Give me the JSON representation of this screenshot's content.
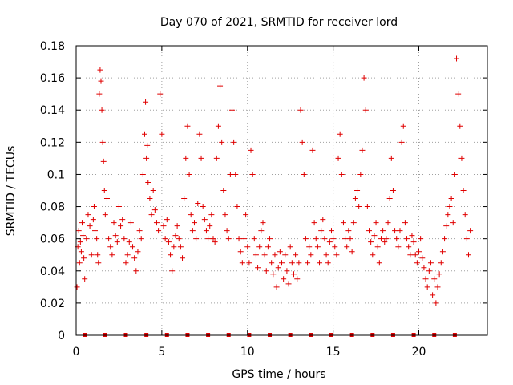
{
  "chart_data": {
    "type": "scatter",
    "title": "Day 070 of 2021, SRMTID for receiver lord",
    "xlabel": "GPS time / hours",
    "ylabel": "SRMTID / TECUs",
    "xlim": [
      0,
      24
    ],
    "ylim": [
      0,
      0.18
    ],
    "xticks": [
      0,
      5,
      10,
      15,
      20
    ],
    "xtick_labels": [
      "0",
      "5",
      "10",
      "15",
      "20"
    ],
    "yticks": [
      0,
      0.02,
      0.04,
      0.06,
      0.08,
      0.1,
      0.12,
      0.14,
      0.16,
      0.18
    ],
    "ytick_labels": [
      "0",
      "0.02",
      "0.04",
      "0.06",
      "0.08",
      "0.1",
      "0.12",
      "0.14",
      "0.16",
      "0.18"
    ],
    "grid": true,
    "marker": "+",
    "color": "#e00000",
    "series": [
      {
        "name": "SRMTID",
        "points": [
          [
            0.05,
            0.03
          ],
          [
            0.1,
            0.055
          ],
          [
            0.15,
            0.065
          ],
          [
            0.2,
            0.045
          ],
          [
            0.25,
            0.058
          ],
          [
            0.3,
            0.052
          ],
          [
            0.35,
            0.07
          ],
          [
            0.4,
            0.062
          ],
          [
            0.45,
            0.048
          ],
          [
            0.5,
            0.035
          ],
          [
            0.6,
            0.06
          ],
          [
            0.7,
            0.075
          ],
          [
            0.8,
            0.068
          ],
          [
            0.9,
            0.05
          ],
          [
            1.0,
            0.072
          ],
          [
            1.05,
            0.08
          ],
          [
            1.1,
            0.065
          ],
          [
            1.2,
            0.06
          ],
          [
            1.25,
            0.05
          ],
          [
            1.3,
            0.045
          ],
          [
            1.35,
            0.15
          ],
          [
            1.4,
            0.165
          ],
          [
            1.45,
            0.158
          ],
          [
            1.5,
            0.14
          ],
          [
            1.55,
            0.12
          ],
          [
            1.6,
            0.108
          ],
          [
            1.65,
            0.09
          ],
          [
            1.7,
            0.075
          ],
          [
            1.8,
            0.085
          ],
          [
            1.9,
            0.06
          ],
          [
            2.0,
            0.055
          ],
          [
            2.1,
            0.05
          ],
          [
            2.2,
            0.07
          ],
          [
            2.3,
            0.062
          ],
          [
            2.4,
            0.058
          ],
          [
            2.5,
            0.08
          ],
          [
            2.6,
            0.068
          ],
          [
            2.7,
            0.072
          ],
          [
            2.8,
            0.06
          ],
          [
            2.9,
            0.045
          ],
          [
            3.0,
            0.05
          ],
          [
            3.1,
            0.058
          ],
          [
            3.2,
            0.07
          ],
          [
            3.3,
            0.055
          ],
          [
            3.4,
            0.048
          ],
          [
            3.5,
            0.04
          ],
          [
            3.6,
            0.052
          ],
          [
            3.7,
            0.065
          ],
          [
            3.8,
            0.06
          ],
          [
            3.9,
            0.1
          ],
          [
            4.0,
            0.125
          ],
          [
            4.05,
            0.145
          ],
          [
            4.1,
            0.11
          ],
          [
            4.15,
            0.118
          ],
          [
            4.2,
            0.095
          ],
          [
            4.3,
            0.085
          ],
          [
            4.4,
            0.075
          ],
          [
            4.5,
            0.09
          ],
          [
            4.6,
            0.078
          ],
          [
            4.7,
            0.07
          ],
          [
            4.8,
            0.065
          ],
          [
            4.9,
            0.15
          ],
          [
            5.0,
            0.125
          ],
          [
            5.1,
            0.068
          ],
          [
            5.2,
            0.06
          ],
          [
            5.3,
            0.072
          ],
          [
            5.4,
            0.058
          ],
          [
            5.5,
            0.05
          ],
          [
            5.6,
            0.04
          ],
          [
            5.7,
            0.055
          ],
          [
            5.8,
            0.062
          ],
          [
            5.9,
            0.068
          ],
          [
            6.0,
            0.06
          ],
          [
            6.1,
            0.055
          ],
          [
            6.2,
            0.048
          ],
          [
            6.3,
            0.085
          ],
          [
            6.4,
            0.11
          ],
          [
            6.5,
            0.13
          ],
          [
            6.6,
            0.1
          ],
          [
            6.7,
            0.075
          ],
          [
            6.8,
            0.065
          ],
          [
            6.9,
            0.07
          ],
          [
            7.0,
            0.06
          ],
          [
            7.1,
            0.082
          ],
          [
            7.2,
            0.125
          ],
          [
            7.3,
            0.11
          ],
          [
            7.4,
            0.08
          ],
          [
            7.5,
            0.072
          ],
          [
            7.6,
            0.065
          ],
          [
            7.7,
            0.06
          ],
          [
            7.8,
            0.068
          ],
          [
            7.9,
            0.075
          ],
          [
            8.0,
            0.06
          ],
          [
            8.1,
            0.058
          ],
          [
            8.2,
            0.11
          ],
          [
            8.3,
            0.13
          ],
          [
            8.4,
            0.155
          ],
          [
            8.5,
            0.12
          ],
          [
            8.6,
            0.09
          ],
          [
            8.7,
            0.075
          ],
          [
            8.8,
            0.065
          ],
          [
            8.9,
            0.06
          ],
          [
            9.0,
            0.1
          ],
          [
            9.1,
            0.14
          ],
          [
            9.2,
            0.12
          ],
          [
            9.3,
            0.1
          ],
          [
            9.4,
            0.08
          ],
          [
            9.5,
            0.06
          ],
          [
            9.6,
            0.052
          ],
          [
            9.7,
            0.045
          ],
          [
            9.8,
            0.06
          ],
          [
            9.9,
            0.075
          ],
          [
            10.0,
            0.055
          ],
          [
            10.1,
            0.045
          ],
          [
            10.2,
            0.115
          ],
          [
            10.3,
            0.1
          ],
          [
            10.4,
            0.06
          ],
          [
            10.5,
            0.05
          ],
          [
            10.6,
            0.042
          ],
          [
            10.7,
            0.055
          ],
          [
            10.8,
            0.065
          ],
          [
            10.9,
            0.07
          ],
          [
            11.0,
            0.05
          ],
          [
            11.1,
            0.04
          ],
          [
            11.2,
            0.055
          ],
          [
            11.3,
            0.06
          ],
          [
            11.4,
            0.045
          ],
          [
            11.5,
            0.038
          ],
          [
            11.6,
            0.05
          ],
          [
            11.7,
            0.03
          ],
          [
            11.8,
            0.042
          ],
          [
            11.9,
            0.052
          ],
          [
            12.0,
            0.045
          ],
          [
            12.1,
            0.035
          ],
          [
            12.2,
            0.05
          ],
          [
            12.3,
            0.04
          ],
          [
            12.4,
            0.032
          ],
          [
            12.5,
            0.055
          ],
          [
            12.6,
            0.045
          ],
          [
            12.7,
            0.038
          ],
          [
            12.8,
            0.05
          ],
          [
            12.9,
            0.035
          ],
          [
            13.0,
            0.045
          ],
          [
            13.1,
            0.14
          ],
          [
            13.2,
            0.12
          ],
          [
            13.3,
            0.1
          ],
          [
            13.4,
            0.06
          ],
          [
            13.5,
            0.045
          ],
          [
            13.6,
            0.055
          ],
          [
            13.7,
            0.05
          ],
          [
            13.8,
            0.115
          ],
          [
            13.9,
            0.07
          ],
          [
            14.0,
            0.06
          ],
          [
            14.1,
            0.055
          ],
          [
            14.2,
            0.045
          ],
          [
            14.3,
            0.065
          ],
          [
            14.4,
            0.072
          ],
          [
            14.5,
            0.06
          ],
          [
            14.6,
            0.05
          ],
          [
            14.7,
            0.045
          ],
          [
            14.8,
            0.058
          ],
          [
            14.9,
            0.065
          ],
          [
            15.0,
            0.06
          ],
          [
            15.1,
            0.055
          ],
          [
            15.2,
            0.05
          ],
          [
            15.3,
            0.11
          ],
          [
            15.4,
            0.125
          ],
          [
            15.5,
            0.1
          ],
          [
            15.6,
            0.07
          ],
          [
            15.7,
            0.06
          ],
          [
            15.8,
            0.055
          ],
          [
            15.9,
            0.065
          ],
          [
            16.0,
            0.06
          ],
          [
            16.1,
            0.052
          ],
          [
            16.2,
            0.07
          ],
          [
            16.3,
            0.085
          ],
          [
            16.4,
            0.09
          ],
          [
            16.5,
            0.08
          ],
          [
            16.6,
            0.1
          ],
          [
            16.7,
            0.115
          ],
          [
            16.8,
            0.16
          ],
          [
            16.9,
            0.14
          ],
          [
            17.0,
            0.08
          ],
          [
            17.1,
            0.065
          ],
          [
            17.2,
            0.058
          ],
          [
            17.3,
            0.05
          ],
          [
            17.4,
            0.062
          ],
          [
            17.5,
            0.07
          ],
          [
            17.6,
            0.055
          ],
          [
            17.7,
            0.045
          ],
          [
            17.8,
            0.06
          ],
          [
            17.9,
            0.065
          ],
          [
            18.0,
            0.058
          ],
          [
            18.1,
            0.06
          ],
          [
            18.2,
            0.07
          ],
          [
            18.3,
            0.085
          ],
          [
            18.4,
            0.11
          ],
          [
            18.5,
            0.09
          ],
          [
            18.6,
            0.065
          ],
          [
            18.7,
            0.06
          ],
          [
            18.8,
            0.055
          ],
          [
            18.9,
            0.065
          ],
          [
            19.0,
            0.12
          ],
          [
            19.1,
            0.13
          ],
          [
            19.2,
            0.07
          ],
          [
            19.3,
            0.06
          ],
          [
            19.4,
            0.055
          ],
          [
            19.5,
            0.05
          ],
          [
            19.6,
            0.062
          ],
          [
            19.7,
            0.058
          ],
          [
            19.8,
            0.05
          ],
          [
            19.9,
            0.045
          ],
          [
            20.0,
            0.052
          ],
          [
            20.1,
            0.06
          ],
          [
            20.2,
            0.048
          ],
          [
            20.3,
            0.042
          ],
          [
            20.4,
            0.035
          ],
          [
            20.5,
            0.03
          ],
          [
            20.6,
            0.04
          ],
          [
            20.7,
            0.045
          ],
          [
            20.8,
            0.025
          ],
          [
            20.9,
            0.035
          ],
          [
            21.0,
            0.02
          ],
          [
            21.1,
            0.03
          ],
          [
            21.2,
            0.038
          ],
          [
            21.3,
            0.045
          ],
          [
            21.4,
            0.052
          ],
          [
            21.5,
            0.06
          ],
          [
            21.6,
            0.068
          ],
          [
            21.7,
            0.075
          ],
          [
            21.8,
            0.08
          ],
          [
            21.9,
            0.085
          ],
          [
            22.0,
            0.07
          ],
          [
            22.1,
            0.1
          ],
          [
            22.2,
            0.172
          ],
          [
            22.3,
            0.15
          ],
          [
            22.4,
            0.13
          ],
          [
            22.5,
            0.11
          ],
          [
            22.6,
            0.09
          ],
          [
            22.7,
            0.075
          ],
          [
            22.8,
            0.06
          ],
          [
            22.9,
            0.05
          ],
          [
            23.0,
            0.065
          ]
        ]
      }
    ],
    "baseline_markers": {
      "y": 0,
      "color": "#e00000",
      "x": [
        0.5,
        1.7,
        2.9,
        4.1,
        5.3,
        6.5,
        7.7,
        8.9,
        10.1,
        11.3,
        12.5,
        13.7,
        14.9,
        16.1,
        17.3,
        18.5,
        19.7,
        20.9,
        22.1
      ]
    }
  }
}
